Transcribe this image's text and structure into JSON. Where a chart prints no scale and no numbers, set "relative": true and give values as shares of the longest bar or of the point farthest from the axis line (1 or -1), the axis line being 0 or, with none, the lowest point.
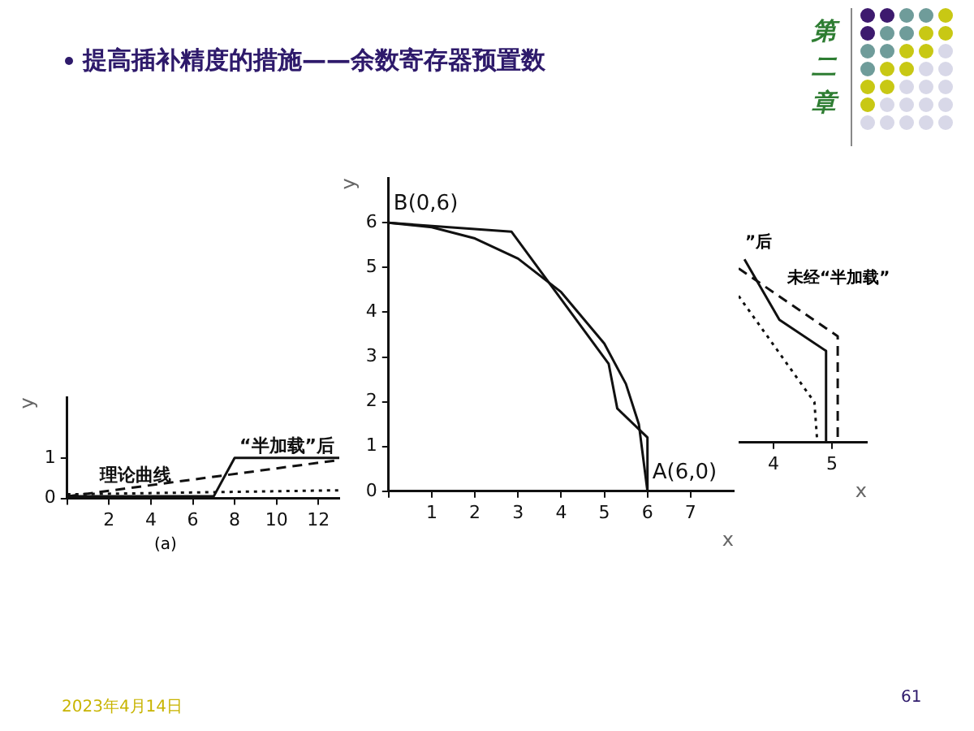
{
  "chart_data": [
    {
      "type": "line",
      "title": "提高插补精度的措施——余数寄存器预置数",
      "annotations": [
        "第二章",
        "(a)",
        "2023年4月14日",
        "61"
      ],
      "xlim": [
        0,
        13
      ],
      "xticks": [
        {
          "value": 0,
          "label": null
        },
        2,
        4,
        6,
        8,
        10,
        12
      ],
      "ylim": [
        0,
        2.5
      ],
      "yticks": [
        0,
        1
      ],
      "ylabel": "y",
      "grid": false,
      "legend": false,
      "series": [
        {
          "name": "“半加载”后",
          "color": "#111111",
          "line_style": "solid",
          "x": [
            0,
            7,
            8,
            13
          ],
          "values": [
            0.05,
            0.05,
            1,
            1
          ]
        },
        {
          "name": "理论曲线",
          "color": "#111111",
          "line_style": "dashed",
          "x": [
            0,
            13
          ],
          "values": [
            0.05,
            0.95
          ]
        },
        {
          "color": "#111111",
          "line_style": "dotted",
          "x": [
            0,
            13
          ],
          "values": [
            0.1,
            0.2
          ]
        }
      ]
    },
    {
      "type": "line",
      "xlabel": "x",
      "ylabel": "y",
      "xlim": [
        0,
        8
      ],
      "xticks": [
        {
          "value": 0,
          "label": null
        },
        1,
        2,
        3,
        4,
        5,
        6,
        7
      ],
      "ylim": [
        0,
        7
      ],
      "yticks": [
        0,
        1,
        2,
        3,
        4,
        5,
        6
      ],
      "grid": false,
      "legend": false,
      "annotations": [
        {
          "text": "B(0,6)",
          "x": 0,
          "y": 6
        },
        {
          "text": "A(6,0)",
          "x": 6,
          "y": 0
        }
      ],
      "series": [
        {
          "color": "#111111",
          "line_style": "solid",
          "x": [
            0,
            1,
            2,
            3,
            4,
            5,
            5.5,
            5.8,
            6
          ],
          "values": [
            6,
            5.9,
            5.65,
            5.2,
            4.45,
            3.3,
            2.4,
            1.5,
            0
          ]
        },
        {
          "color": "#111111",
          "line_style": "solid",
          "x": [
            0,
            2.85,
            5.1,
            5.3,
            6,
            6
          ],
          "values": [
            6,
            5.8,
            2.85,
            1.85,
            1.2,
            0
          ]
        }
      ]
    },
    {
      "type": "line",
      "relative": true,
      "xlabel": "x",
      "xlim": [
        3.4,
        5.6
      ],
      "xticks": [
        4,
        5
      ],
      "grid": false,
      "legend": false,
      "annotations": [
        "”后",
        "未经“半加载”"
      ],
      "series": [
        {
          "color": "#111111",
          "line_style": "solid",
          "x": [
            3.5,
            4.1,
            4.9,
            4.9
          ],
          "values": [
            1,
            0.67,
            0.5,
            0
          ]
        },
        {
          "color": "#111111",
          "line_style": "dashed",
          "x": [
            3.4,
            5.1,
            5.1
          ],
          "values": [
            0.95,
            0.58,
            0
          ]
        },
        {
          "color": "#111111",
          "line_style": "dotted",
          "x": [
            3.4,
            4.7,
            4.75
          ],
          "values": [
            0.8,
            0.22,
            0
          ]
        }
      ]
    }
  ]
}
